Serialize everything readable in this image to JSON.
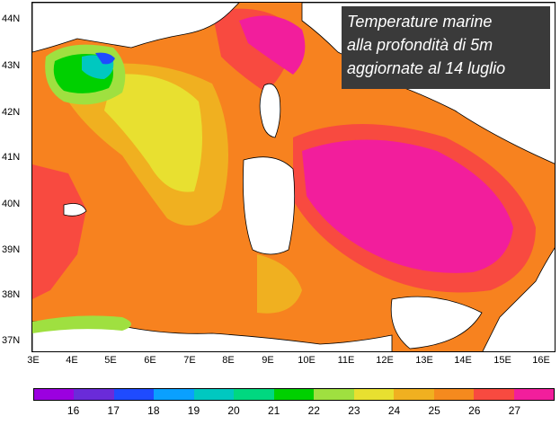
{
  "title_lines": [
    "Temperature marine",
    "alla profondità di 5m",
    "aggiornate al 14 luglio"
  ],
  "lat_labels": [
    "44N",
    "43N",
    "42N",
    "41N",
    "40N",
    "39N",
    "38N",
    "37N"
  ],
  "lon_labels": [
    "3E",
    "4E",
    "5E",
    "6E",
    "7E",
    "8E",
    "9E",
    "10E",
    "11E",
    "12E",
    "13E",
    "14E",
    "15E",
    "16E"
  ],
  "legend": {
    "colors": [
      "#9b00e0",
      "#6a2bd9",
      "#1f4bff",
      "#0aa0ff",
      "#00c8c0",
      "#00d880",
      "#00d000",
      "#9fe040",
      "#e8e030",
      "#f0b020",
      "#f58a1e",
      "#f84a40",
      "#f21e9c"
    ],
    "labels": [
      "16",
      "17",
      "18",
      "19",
      "20",
      "21",
      "22",
      "23",
      "24",
      "25",
      "26",
      "27"
    ]
  },
  "colors": {
    "warm_orange": "#f7821f",
    "red": "#f84a40",
    "magenta": "#f21e9c",
    "yellow": "#e8e030",
    "yellow_orange": "#f0b020",
    "light_green": "#9fe040",
    "green": "#00d000",
    "cyan": "#00c8c0",
    "blue": "#1f4bff",
    "land": "#ffffff"
  }
}
